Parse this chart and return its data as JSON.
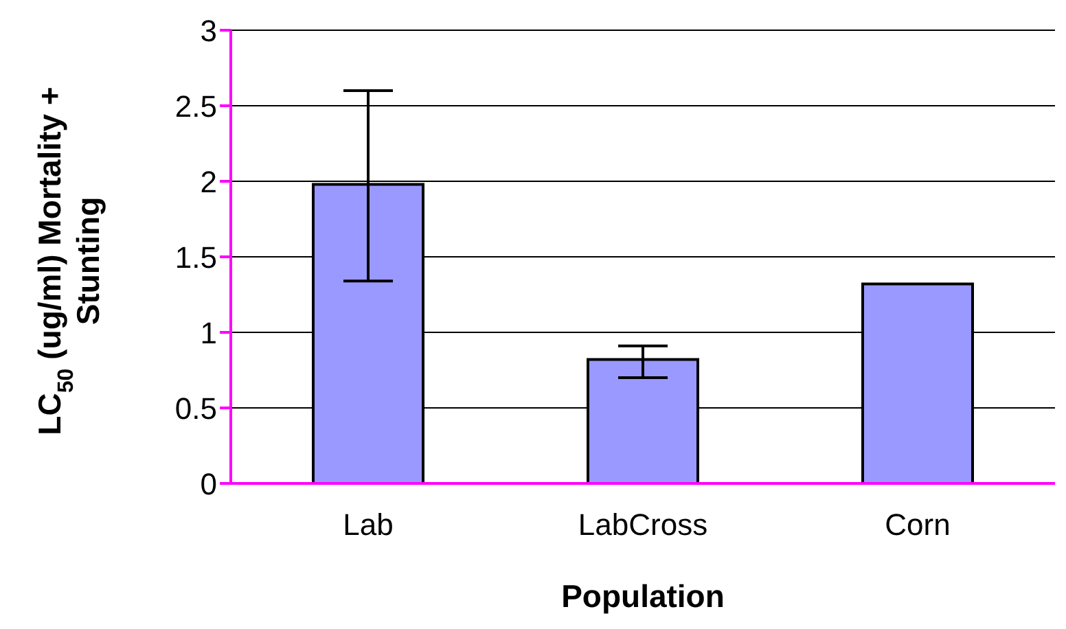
{
  "chart_data": {
    "type": "bar",
    "xlabel": "Population",
    "ylabel": "LC$_{50}$ (ug/ml) Mortality + Stunting",
    "categories": [
      "Lab",
      "LabCross",
      "Corn"
    ],
    "values": [
      1.98,
      0.82,
      1.32
    ],
    "errors": [
      [
        1.34,
        2.6
      ],
      [
        0.7,
        0.91
      ],
      null
    ],
    "color": "#9999ff",
    "ylim": [
      0,
      3
    ],
    "yticks": [
      0,
      0.5,
      1,
      1.5,
      2,
      2.5,
      3
    ],
    "grid": "y"
  }
}
